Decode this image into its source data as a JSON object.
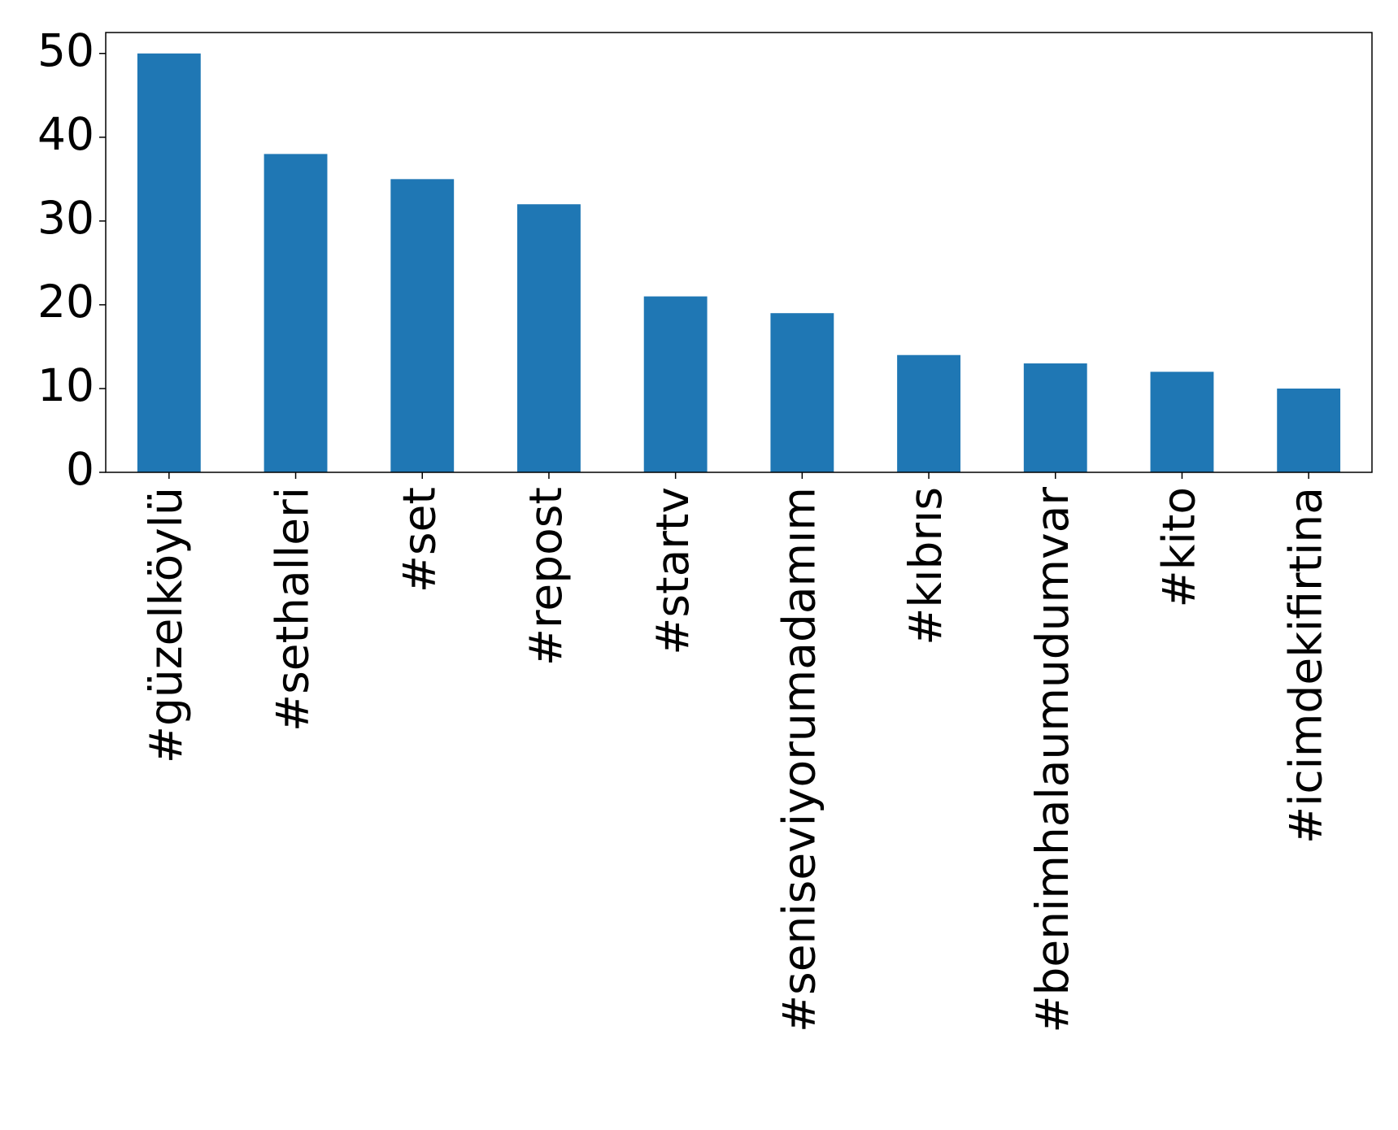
{
  "chart_data": {
    "type": "bar",
    "categories": [
      "#güzelköylü",
      "#sethalleri",
      "#set",
      "#repost",
      "#startv",
      "#seniseviyorumadamım",
      "#kıbrıs",
      "#benimhalaumudumvar",
      "#kito",
      "#icimdekifirtina"
    ],
    "values": [
      50,
      38,
      35,
      32,
      21,
      19,
      14,
      13,
      12,
      10
    ],
    "color": "#1f77b4",
    "ylim": [
      0,
      52.5
    ],
    "yticks": [
      0,
      10,
      20,
      30,
      40,
      50
    ],
    "grid": false
  }
}
